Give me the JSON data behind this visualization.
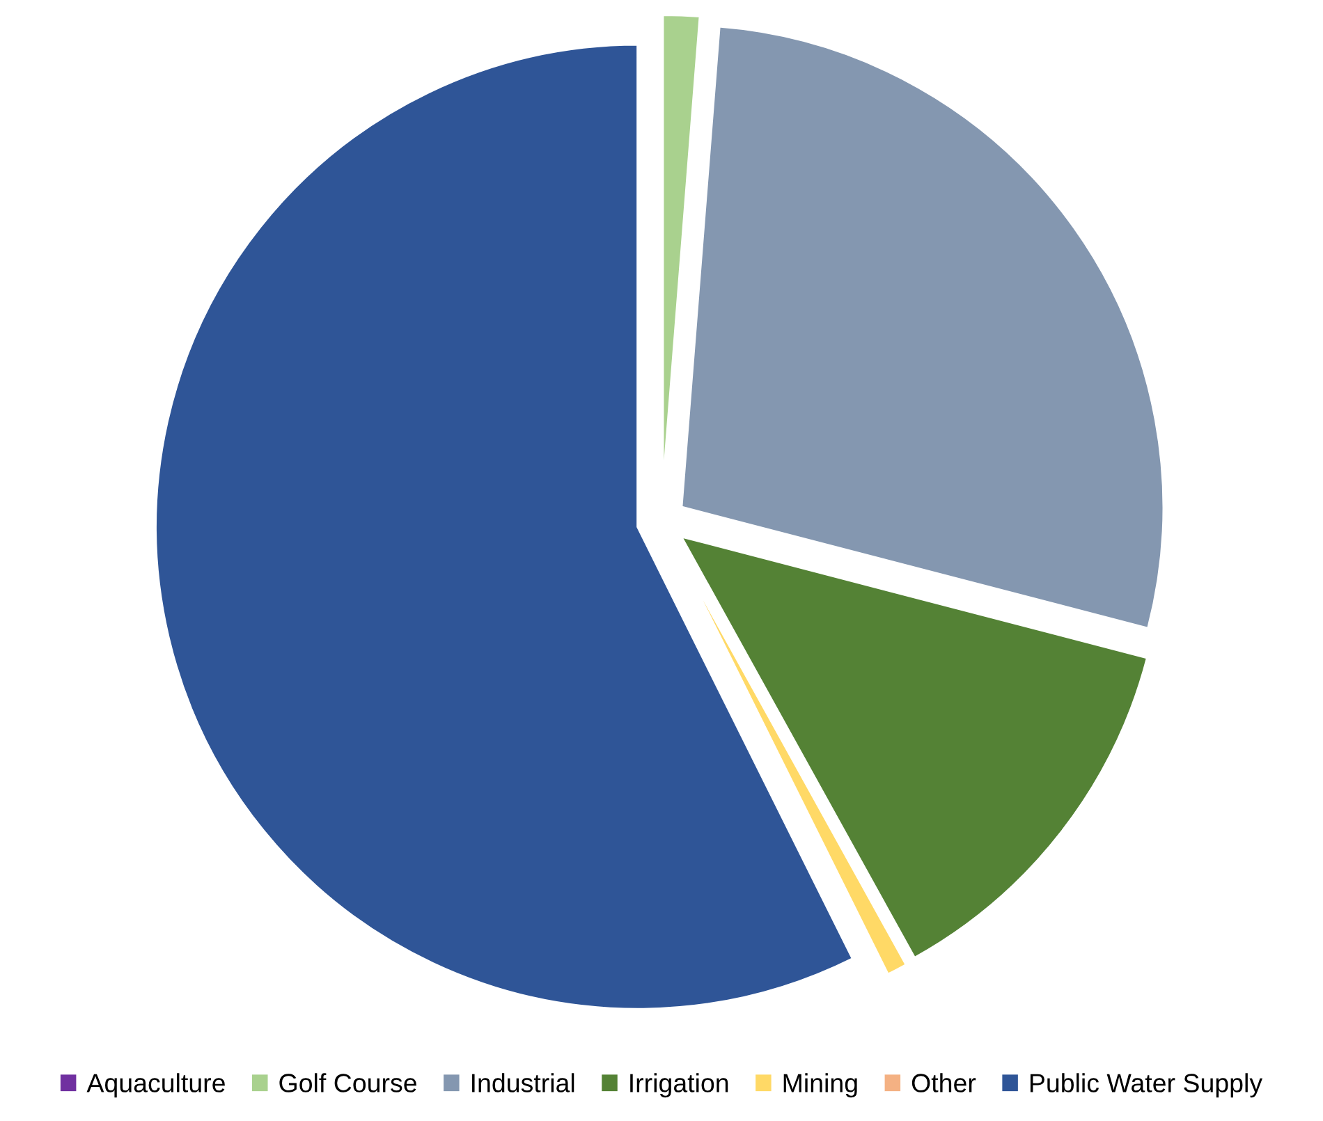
{
  "chart_data": {
    "type": "pie",
    "categories": [
      "Aquaculture",
      "Golf Course",
      "Industrial",
      "Irrigation",
      "Mining",
      "Other",
      "Public Water Supply"
    ],
    "values": [
      0,
      1.25,
      27.8,
      12.9,
      0.7,
      0,
      57.35
    ],
    "colors": [
      "#7030a0",
      "#a9d18e",
      "#8497b0",
      "#548235",
      "#ffd966",
      "#f4b183",
      "#2f5597"
    ],
    "legend": "bottom"
  }
}
